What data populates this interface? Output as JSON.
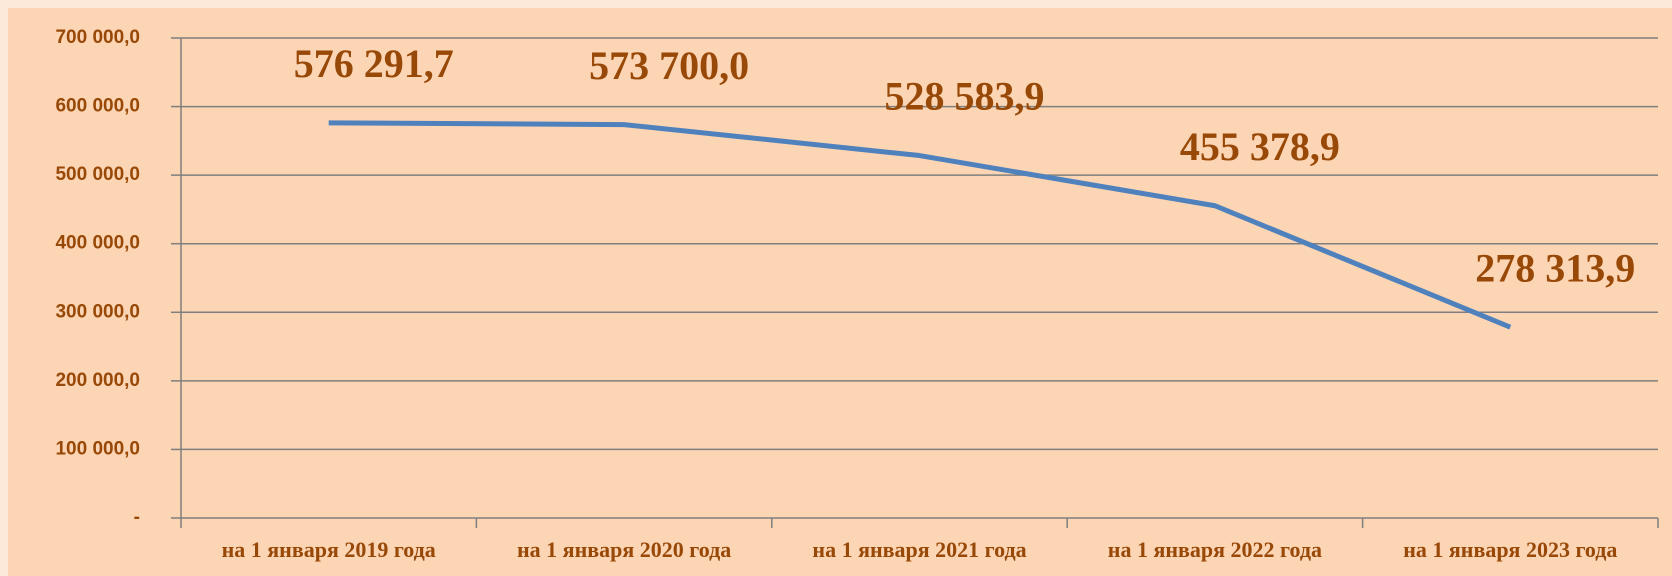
{
  "chart_data": {
    "type": "line",
    "categories": [
      "на 1 января 2019 года",
      "на 1 января 2020 года",
      "на 1 января 2021 года",
      "на 1 января 2022 года",
      "на 1 января 2023 года"
    ],
    "series": [
      {
        "color": "#4f81bd",
        "values": [
          576291.7,
          573700.0,
          528583.9,
          455378.9,
          278313.9
        ],
        "value_labels": [
          "576 291,7",
          "573 700,0",
          "528 583,9",
          "455 378,9",
          "278 313,9"
        ]
      }
    ],
    "ylim": [
      0,
      700000
    ],
    "yticks": [
      {
        "value": 0,
        "label": "-"
      },
      {
        "value": 100000,
        "label": "100 000,0"
      },
      {
        "value": 200000,
        "label": "200 000,0"
      },
      {
        "value": 300000,
        "label": "300 000,0"
      },
      {
        "value": 400000,
        "label": "400 000,0"
      },
      {
        "value": 500000,
        "label": "500 000,0"
      },
      {
        "value": 600000,
        "label": "600 000,0"
      },
      {
        "value": 700000,
        "label": "700 000,0"
      }
    ],
    "grid": true
  }
}
